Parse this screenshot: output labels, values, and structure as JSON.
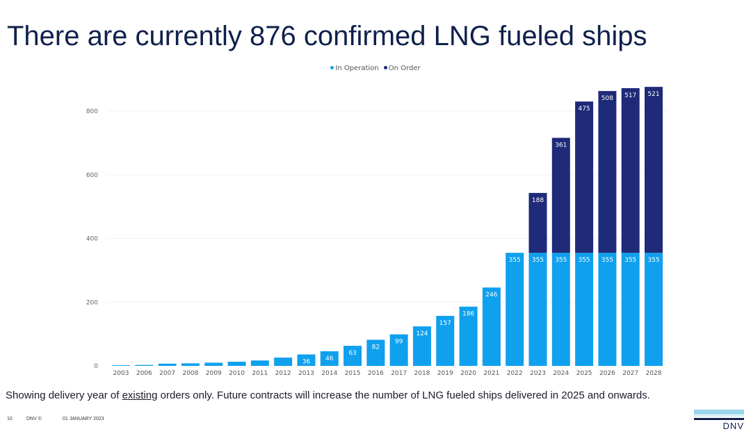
{
  "title": "There are currently 876 confirmed LNG fueled ships",
  "note": {
    "before": "Showing delivery year of ",
    "underlined": "existing",
    "after": " orders only. Future contracts will increase the number of LNG fueled ships delivered in 2025 and onwards."
  },
  "footer": {
    "page": "10",
    "copyright": "DNV ©",
    "date": "01 JANUARY 2023"
  },
  "logo_text": "DNV",
  "colors": {
    "in_operation": "#0fa0ee",
    "on_order": "#1f2a78",
    "title": "#0f204b"
  },
  "chart_data": {
    "type": "bar",
    "stacked": true,
    "title": "There are currently 876 confirmed LNG fueled ships",
    "legend_position": "top-center",
    "categories": [
      "2003",
      "2006",
      "2007",
      "2008",
      "2009",
      "2010",
      "2011",
      "2012",
      "2013",
      "2014",
      "2015",
      "2016",
      "2017",
      "2018",
      "2019",
      "2020",
      "2021",
      "2022",
      "2023",
      "2024",
      "2025",
      "2026",
      "2027",
      "2028"
    ],
    "series": [
      {
        "name": "In Operation",
        "values": [
          2,
          3,
          7,
          8,
          10,
          13,
          17,
          26,
          36,
          46,
          63,
          82,
          99,
          124,
          157,
          186,
          246,
          355,
          355,
          355,
          355,
          355,
          355,
          355
        ],
        "labels": [
          null,
          null,
          null,
          null,
          null,
          null,
          null,
          null,
          "36",
          "46",
          "63",
          "82",
          "99",
          "124",
          "157",
          "186",
          "246",
          "355",
          "355",
          "355",
          "355",
          "355",
          "355",
          "355"
        ]
      },
      {
        "name": "On Order",
        "values": [
          0,
          0,
          0,
          0,
          0,
          0,
          0,
          0,
          0,
          0,
          0,
          0,
          0,
          0,
          0,
          0,
          0,
          0,
          188,
          361,
          475,
          508,
          517,
          521
        ],
        "labels": [
          null,
          null,
          null,
          null,
          null,
          null,
          null,
          null,
          null,
          null,
          null,
          null,
          null,
          null,
          null,
          null,
          null,
          null,
          "188",
          "361",
          "475",
          "508",
          "517",
          "521"
        ]
      }
    ],
    "yticks": [
      0,
      200,
      400,
      600,
      800
    ],
    "ylim": [
      0,
      880
    ],
    "xlabel": "",
    "ylabel": "",
    "grid": true
  }
}
